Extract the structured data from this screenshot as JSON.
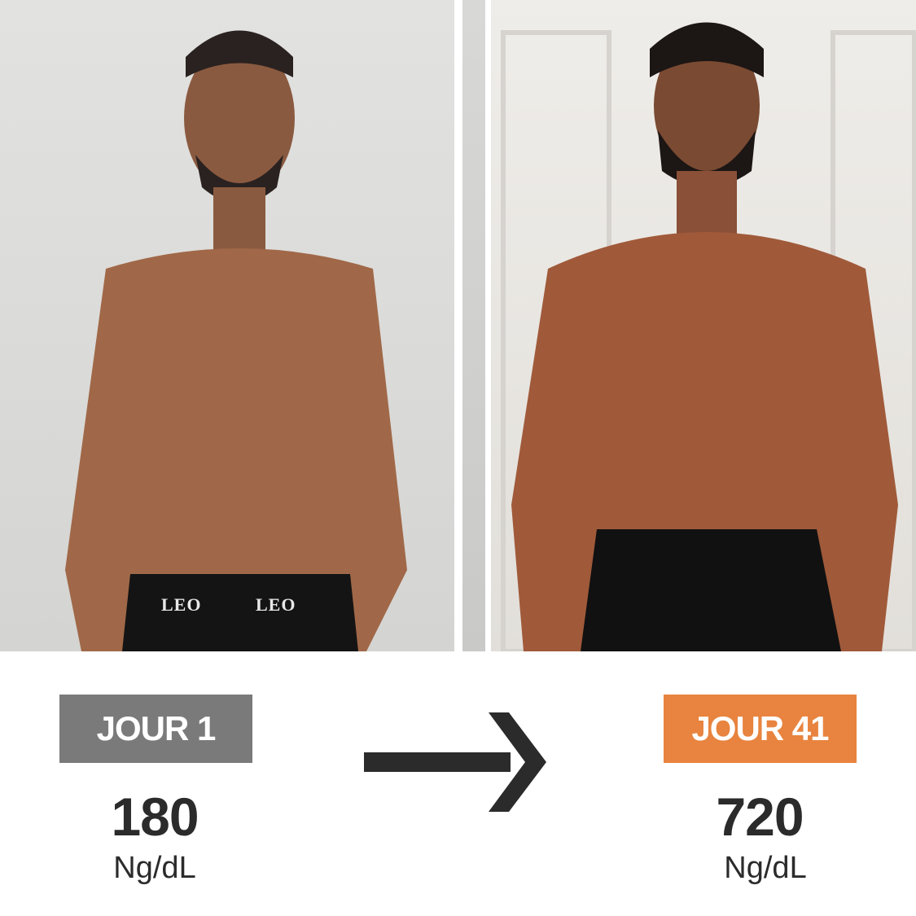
{
  "before": {
    "label": "JOUR 1",
    "value": "180",
    "unit": "Ng/dL",
    "badge_color": "#7a7a7a",
    "waistband_text": "LEO"
  },
  "after": {
    "label": "JOUR 41",
    "value": "720",
    "unit": "Ng/dL",
    "badge_color": "#e8843f"
  },
  "arrow_icon": "arrow-right-icon"
}
